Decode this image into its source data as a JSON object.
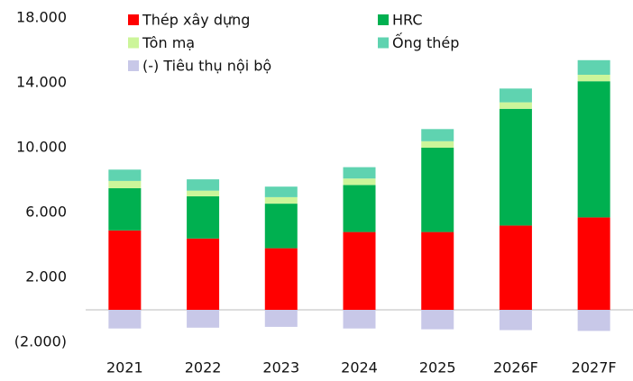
{
  "chart_data": {
    "type": "stacked_bar",
    "categories": [
      "2021",
      "2022",
      "2023",
      "2024",
      "2025",
      "2026F",
      "2027F"
    ],
    "series": [
      {
        "name": "Thép xây dựng",
        "color": "#ff0000",
        "values": [
          4900,
          4400,
          3800,
          4800,
          4800,
          5200,
          5700
        ]
      },
      {
        "name": "HRC",
        "color": "#00b050",
        "values": [
          2600,
          2600,
          2750,
          2900,
          5200,
          7200,
          8400
        ]
      },
      {
        "name": "Tôn mạ",
        "color": "#ccf59a",
        "values": [
          450,
          350,
          400,
          400,
          400,
          400,
          400
        ]
      },
      {
        "name": "Ống thép",
        "color": "#5fd3b0",
        "values": [
          700,
          700,
          650,
          700,
          750,
          850,
          900
        ]
      },
      {
        "name": "(-) Tiêu thụ nội bộ",
        "color": "#c8c8e8",
        "values": [
          -1150,
          -1100,
          -1050,
          -1150,
          -1200,
          -1250,
          -1300
        ]
      }
    ],
    "ylim": [
      -2000,
      18000
    ],
    "yticks": [
      {
        "value": -2000,
        "label": "(2.000)"
      },
      {
        "value": 2000,
        "label": "2.000"
      },
      {
        "value": 6000,
        "label": "6.000"
      },
      {
        "value": 10000,
        "label": "10.000"
      },
      {
        "value": 14000,
        "label": "14.000"
      },
      {
        "value": 18000,
        "label": "18.000"
      }
    ]
  }
}
